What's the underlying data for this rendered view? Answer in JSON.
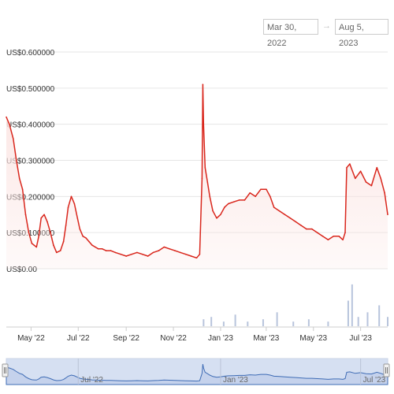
{
  "range_selector": {
    "from": "Mar 30, 2022",
    "arrow": "→",
    "to": "Aug 5, 2023"
  },
  "colors": {
    "line": "#d9261c",
    "fill": "#fbe4e2",
    "volume": "#b8c4dc",
    "navigator_fill": "#d6e0f2",
    "navigator_line": "#3f6cb5",
    "grid": "#e6e6e6"
  },
  "chart_data": {
    "type": "line",
    "title": "",
    "xlabel": "",
    "ylabel": "",
    "ylim": [
      0,
      0.6
    ],
    "yticks": [
      {
        "value": 0.6,
        "label": "US$0.600000"
      },
      {
        "value": 0.5,
        "label": "US$0.500000"
      },
      {
        "value": 0.4,
        "label": "US$0.400000"
      },
      {
        "value": 0.3,
        "label": "US$0.300000"
      },
      {
        "value": 0.2,
        "label": "US$0.200000"
      },
      {
        "value": 0.1,
        "label": "US$0.100000"
      },
      {
        "value": 0.0,
        "label": "US$0.00"
      }
    ],
    "xticks": [
      {
        "date": "2022-05-01",
        "label": "May '22"
      },
      {
        "date": "2022-07-01",
        "label": "Jul '22"
      },
      {
        "date": "2022-09-01",
        "label": "Sep '22"
      },
      {
        "date": "2022-11-01",
        "label": "Nov '22"
      },
      {
        "date": "2023-01-01",
        "label": "Jan '23"
      },
      {
        "date": "2023-03-01",
        "label": "Mar '23"
      },
      {
        "date": "2023-05-01",
        "label": "May '23"
      },
      {
        "date": "2023-07-01",
        "label": "Jul '23"
      }
    ],
    "navigator_ticks": [
      {
        "date": "2022-07-01",
        "label": "Jul '22"
      },
      {
        "date": "2023-01-01",
        "label": "Jan '23"
      },
      {
        "date": "2023-07-01",
        "label": "Jul '23"
      }
    ],
    "series": [
      {
        "x": [
          "2022-03-30",
          "2022-04-03",
          "2022-04-08",
          "2022-04-12",
          "2022-04-16",
          "2022-04-20",
          "2022-04-24",
          "2022-04-28",
          "2022-05-02",
          "2022-05-05",
          "2022-05-08",
          "2022-05-11",
          "2022-05-14",
          "2022-05-18",
          "2022-05-22",
          "2022-05-26",
          "2022-05-30",
          "2022-06-03",
          "2022-06-08",
          "2022-06-12",
          "2022-06-15",
          "2022-06-18",
          "2022-06-22",
          "2022-06-26",
          "2022-06-30",
          "2022-07-03",
          "2022-07-07",
          "2022-07-11",
          "2022-07-15",
          "2022-07-19",
          "2022-07-23",
          "2022-07-27",
          "2022-08-01",
          "2022-08-06",
          "2022-08-12",
          "2022-08-18",
          "2022-08-25",
          "2022-09-01",
          "2022-09-08",
          "2022-09-15",
          "2022-09-22",
          "2022-09-29",
          "2022-10-06",
          "2022-10-13",
          "2022-10-20",
          "2022-10-27",
          "2022-11-03",
          "2022-11-10",
          "2022-11-17",
          "2022-11-24",
          "2022-12-01",
          "2022-12-05",
          "2022-12-08",
          "2022-12-09",
          "2022-12-10",
          "2022-12-12",
          "2022-12-15",
          "2022-12-18",
          "2022-12-22",
          "2022-12-27",
          "2023-01-01",
          "2023-01-06",
          "2023-01-11",
          "2023-01-18",
          "2023-01-25",
          "2023-02-01",
          "2023-02-08",
          "2023-02-15",
          "2023-02-22",
          "2023-03-01",
          "2023-03-06",
          "2023-03-11",
          "2023-03-18",
          "2023-03-25",
          "2023-04-01",
          "2023-04-08",
          "2023-04-15",
          "2023-04-22",
          "2023-04-29",
          "2023-05-06",
          "2023-05-13",
          "2023-05-20",
          "2023-05-27",
          "2023-06-03",
          "2023-06-08",
          "2023-06-11",
          "2023-06-13",
          "2023-06-17",
          "2023-06-24",
          "2023-07-01",
          "2023-07-08",
          "2023-07-15",
          "2023-07-22",
          "2023-07-27",
          "2023-08-01",
          "2023-08-05"
        ],
        "values": [
          0.42,
          0.4,
          0.36,
          0.3,
          0.25,
          0.22,
          0.15,
          0.1,
          0.07,
          0.065,
          0.06,
          0.09,
          0.14,
          0.15,
          0.13,
          0.1,
          0.065,
          0.045,
          0.05,
          0.075,
          0.12,
          0.17,
          0.2,
          0.18,
          0.14,
          0.11,
          0.09,
          0.085,
          0.075,
          0.065,
          0.06,
          0.055,
          0.055,
          0.05,
          0.05,
          0.045,
          0.04,
          0.035,
          0.04,
          0.045,
          0.04,
          0.035,
          0.045,
          0.05,
          0.06,
          0.055,
          0.05,
          0.045,
          0.04,
          0.035,
          0.03,
          0.04,
          0.25,
          0.51,
          0.4,
          0.28,
          0.24,
          0.2,
          0.16,
          0.14,
          0.15,
          0.17,
          0.18,
          0.185,
          0.19,
          0.19,
          0.21,
          0.2,
          0.22,
          0.22,
          0.2,
          0.17,
          0.16,
          0.15,
          0.14,
          0.13,
          0.12,
          0.11,
          0.11,
          0.1,
          0.09,
          0.08,
          0.09,
          0.09,
          0.08,
          0.1,
          0.28,
          0.29,
          0.25,
          0.27,
          0.24,
          0.23,
          0.28,
          0.25,
          0.21,
          0.15
        ]
      }
    ],
    "volume": {
      "x": [
        "2022-12-10",
        "2022-12-20",
        "2023-01-05",
        "2023-01-20",
        "2023-02-05",
        "2023-02-25",
        "2023-03-15",
        "2023-04-05",
        "2023-04-25",
        "2023-05-20",
        "2023-06-15",
        "2023-06-20",
        "2023-06-28",
        "2023-07-10",
        "2023-07-25",
        "2023-08-05"
      ],
      "values": [
        3,
        4,
        2,
        5,
        2,
        3,
        6,
        2,
        3,
        2,
        11,
        18,
        4,
        6,
        9,
        4
      ]
    }
  }
}
